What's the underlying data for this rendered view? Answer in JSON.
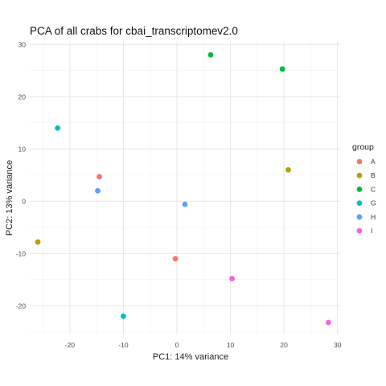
{
  "chart_data": {
    "type": "scatter",
    "title": "PCA of all crabs for cbai_transcriptomev2.0",
    "xlabel": "PC1: 14% variance",
    "ylabel": "PC2: 13% variance",
    "xlim": [
      -27.5,
      30.5
    ],
    "ylim": [
      -25.5,
      30.5
    ],
    "x_ticks": [
      -20,
      -10,
      0,
      10,
      20,
      30
    ],
    "y_ticks": [
      -20,
      -10,
      0,
      10,
      20,
      30
    ],
    "grid": true,
    "legend": {
      "title": "group",
      "placement": "right"
    },
    "series": [
      {
        "name": "A",
        "color": "#F8766D",
        "points": [
          {
            "x": -14.5,
            "y": 4.7
          },
          {
            "x": -0.3,
            "y": -11.0
          }
        ]
      },
      {
        "name": "B",
        "color": "#B79F00",
        "points": [
          {
            "x": -26.0,
            "y": -7.8
          },
          {
            "x": 20.8,
            "y": 6.0
          }
        ]
      },
      {
        "name": "C",
        "color": "#00BA38",
        "points": [
          {
            "x": 6.3,
            "y": 28.0
          },
          {
            "x": 19.7,
            "y": 25.3
          }
        ]
      },
      {
        "name": "G",
        "color": "#00BFC4",
        "points": [
          {
            "x": -22.3,
            "y": 14.0
          },
          {
            "x": -10.0,
            "y": -22.0
          }
        ]
      },
      {
        "name": "H",
        "color": "#619CFF",
        "points": [
          {
            "x": -14.8,
            "y": 2.0
          },
          {
            "x": 1.5,
            "y": -0.6
          }
        ]
      },
      {
        "name": "I",
        "color": "#F564E3",
        "points": [
          {
            "x": 10.3,
            "y": -14.8
          },
          {
            "x": 28.3,
            "y": -23.2
          }
        ]
      }
    ]
  }
}
